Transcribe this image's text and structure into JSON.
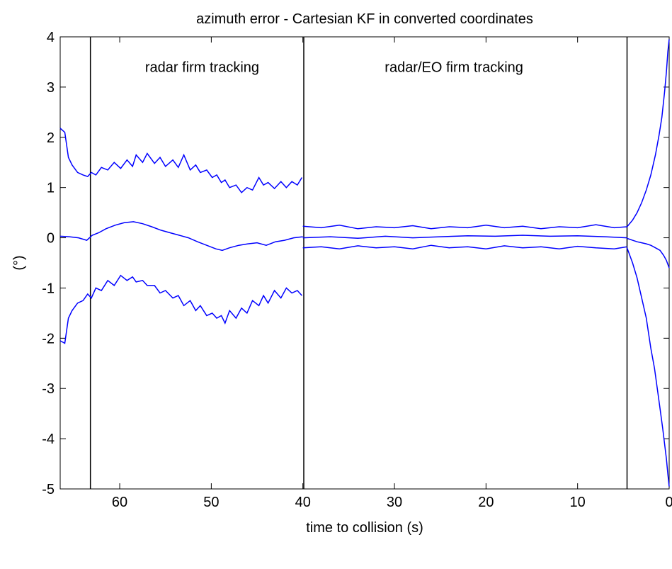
{
  "chart_data": {
    "type": "line",
    "title": "azimuth error - Cartesian KF in converted coordinates",
    "xlabel": "time to collision (s)",
    "ylabel": "(°)",
    "xlim": [
      66.5,
      0
    ],
    "ylim": [
      -5,
      4
    ],
    "x_reversed": true,
    "xticks": [
      60,
      50,
      40,
      30,
      20,
      10,
      0
    ],
    "yticks": [
      -5,
      -4,
      -3,
      -2,
      -1,
      0,
      1,
      2,
      3,
      4
    ],
    "grid": false,
    "line_color": "#0000ff",
    "vertical_lines_x": [
      63.2,
      39.9,
      4.6
    ],
    "annotations": [
      {
        "text": "radar firm tracking",
        "x": 51,
        "y": 3.4
      },
      {
        "text": "radar/EO firm tracking",
        "x": 23.5,
        "y": 3.4
      }
    ],
    "series": [
      {
        "x": [
          66.5,
          66,
          65.6,
          65.2,
          64.6,
          64,
          63.5,
          63.1,
          62.6,
          62,
          61.3,
          60.6,
          59.9,
          59.2,
          58.6,
          58.2,
          57.5,
          57,
          56.2,
          55.6,
          55,
          54.2,
          53.6,
          53,
          52.3,
          51.7,
          51.2,
          50.5,
          49.9,
          49.4,
          48.9,
          48.5,
          48,
          47.3,
          46.7,
          46.1,
          45.5,
          44.8,
          44.3,
          43.8,
          43.1,
          42.4,
          41.8,
          41.2,
          40.6,
          40.1
        ],
        "y": [
          2.18,
          2.1,
          1.6,
          1.45,
          1.3,
          1.25,
          1.22,
          1.3,
          1.25,
          1.4,
          1.35,
          1.5,
          1.38,
          1.55,
          1.42,
          1.65,
          1.5,
          1.68,
          1.48,
          1.6,
          1.42,
          1.55,
          1.4,
          1.65,
          1.35,
          1.45,
          1.3,
          1.35,
          1.2,
          1.25,
          1.1,
          1.15,
          1.0,
          1.05,
          0.9,
          1.0,
          0.95,
          1.2,
          1.05,
          1.1,
          0.98,
          1.12,
          1.0,
          1.12,
          1.05,
          1.2
        ]
      },
      {
        "x": [
          66.5,
          65.5,
          64.5,
          63.6,
          63,
          62.3,
          61.5,
          60.5,
          59.5,
          58.5,
          57.5,
          56.5,
          55.5,
          54.5,
          53.5,
          52.5,
          51.5,
          50.5,
          49.5,
          48.8,
          48,
          47,
          46,
          45,
          44,
          43,
          42,
          41,
          40
        ],
        "y": [
          0.03,
          0.02,
          0.0,
          -0.05,
          0.05,
          0.1,
          0.18,
          0.25,
          0.3,
          0.32,
          0.28,
          0.22,
          0.15,
          0.1,
          0.05,
          0.0,
          -0.08,
          -0.15,
          -0.22,
          -0.25,
          -0.2,
          -0.15,
          -0.12,
          -0.1,
          -0.15,
          -0.08,
          -0.05,
          0.0,
          0.02
        ]
      },
      {
        "x": [
          66.5,
          66,
          65.6,
          65.2,
          64.6,
          64,
          63.5,
          63.1,
          62.6,
          62,
          61.3,
          60.6,
          59.9,
          59.2,
          58.6,
          58.2,
          57.5,
          57,
          56.2,
          55.6,
          55,
          54.2,
          53.6,
          53,
          52.3,
          51.7,
          51.2,
          50.5,
          49.9,
          49.4,
          48.9,
          48.5,
          48,
          47.3,
          46.7,
          46.1,
          45.5,
          44.8,
          44.3,
          43.8,
          43.1,
          42.4,
          41.8,
          41.2,
          40.6,
          40.1
        ],
        "y": [
          -2.05,
          -2.1,
          -1.6,
          -1.45,
          -1.3,
          -1.25,
          -1.12,
          -1.2,
          -1.0,
          -1.05,
          -0.85,
          -0.95,
          -0.75,
          -0.85,
          -0.78,
          -0.88,
          -0.85,
          -0.95,
          -0.95,
          -1.1,
          -1.05,
          -1.2,
          -1.15,
          -1.35,
          -1.25,
          -1.45,
          -1.35,
          -1.55,
          -1.5,
          -1.6,
          -1.55,
          -1.7,
          -1.45,
          -1.6,
          -1.4,
          -1.5,
          -1.25,
          -1.35,
          -1.15,
          -1.3,
          -1.05,
          -1.2,
          -1.0,
          -1.1,
          -1.05,
          -1.15
        ]
      },
      {
        "x": [
          40,
          38,
          36,
          34,
          32,
          30,
          28,
          26,
          24,
          22,
          20,
          18,
          16,
          14,
          12,
          10,
          8,
          6,
          4.6
        ],
        "y": [
          0.23,
          0.2,
          0.25,
          0.18,
          0.22,
          0.2,
          0.24,
          0.18,
          0.22,
          0.2,
          0.25,
          0.2,
          0.23,
          0.18,
          0.22,
          0.2,
          0.26,
          0.2,
          0.22
        ]
      },
      {
        "x": [
          40,
          37,
          34,
          31,
          28,
          25,
          22,
          19,
          16,
          13,
          10,
          7,
          4.6
        ],
        "y": [
          0.0,
          0.02,
          -0.01,
          0.03,
          0.0,
          0.02,
          0.04,
          0.03,
          0.05,
          0.03,
          0.04,
          0.02,
          0.0
        ]
      },
      {
        "x": [
          40,
          38,
          36,
          34,
          32,
          30,
          28,
          26,
          24,
          22,
          20,
          18,
          16,
          14,
          12,
          10,
          8,
          6,
          4.6
        ],
        "y": [
          -0.2,
          -0.18,
          -0.22,
          -0.16,
          -0.2,
          -0.18,
          -0.22,
          -0.15,
          -0.2,
          -0.18,
          -0.22,
          -0.16,
          -0.2,
          -0.18,
          -0.22,
          -0.17,
          -0.2,
          -0.22,
          -0.18
        ]
      },
      {
        "x": [
          4.6,
          4,
          3.5,
          3,
          2.5,
          2,
          1.5,
          1.1,
          0.8,
          0.5,
          0.3,
          0.15,
          0
        ],
        "y": [
          0.22,
          0.35,
          0.5,
          0.7,
          0.95,
          1.25,
          1.65,
          2.05,
          2.4,
          2.9,
          3.3,
          3.7,
          3.95
        ]
      },
      {
        "x": [
          4.6,
          4,
          3.5,
          3,
          2.5,
          2,
          1.5,
          1,
          0.6,
          0.3,
          0
        ],
        "y": [
          -0.01,
          -0.05,
          -0.08,
          -0.1,
          -0.12,
          -0.15,
          -0.2,
          -0.25,
          -0.35,
          -0.45,
          -0.6
        ]
      },
      {
        "x": [
          4.6,
          4,
          3.5,
          3,
          2.5,
          2,
          1.6,
          1.3,
          1,
          0.7,
          0.5,
          0.3,
          0.15,
          0
        ],
        "y": [
          -0.2,
          -0.5,
          -0.8,
          -1.2,
          -1.6,
          -2.2,
          -2.6,
          -3.0,
          -3.4,
          -3.8,
          -4.1,
          -4.4,
          -4.7,
          -4.95
        ]
      }
    ]
  }
}
